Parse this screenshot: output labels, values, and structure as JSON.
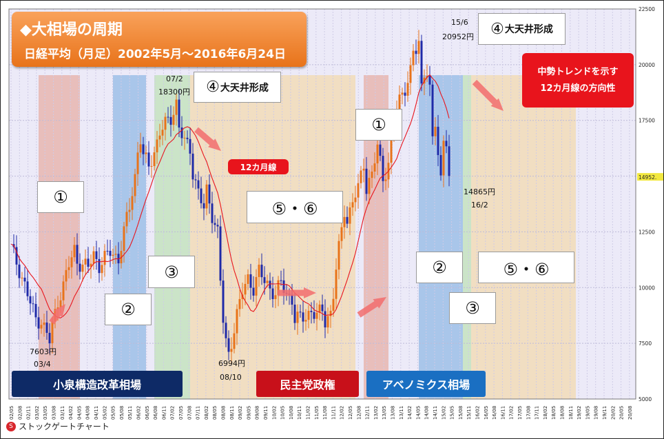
{
  "title": "◆大相場の周期",
  "subtitle": "日経平均（月足）2002年5月〜2016年6月24日",
  "chart_data": {
    "type": "candlestick",
    "ylim": [
      5000,
      22500
    ],
    "y_ticks": [
      5000,
      7500,
      10000,
      12500,
      15000,
      17500,
      20000,
      22500
    ],
    "current_price_label": "14952.",
    "x_ticks": [
      "02/05",
      "02/08",
      "02/11",
      "03/02",
      "03/05",
      "03/08",
      "03/11",
      "04/02",
      "04/05",
      "04/08",
      "04/11",
      "05/02",
      "05/05",
      "05/08",
      "05/11",
      "06/02",
      "06/05",
      "06/08",
      "06/11",
      "07/02",
      "07/05",
      "07/08",
      "07/11",
      "08/02",
      "08/05",
      "08/08",
      "08/11",
      "09/02",
      "09/05",
      "09/08",
      "09/11",
      "10/02",
      "10/05",
      "10/08",
      "10/11",
      "11/02",
      "11/05",
      "11/08",
      "11/11",
      "12/02",
      "12/05",
      "12/08",
      "12/11",
      "13/02",
      "13/05",
      "13/08",
      "13/11",
      "14/02",
      "14/05",
      "14/08",
      "14/11",
      "15/02",
      "15/05",
      "15/08",
      "15/11",
      "16/02",
      "16/05",
      "16/08",
      "16/11",
      "17/02",
      "17/05",
      "17/08",
      "17/11",
      "18/02",
      "18/05",
      "18/08",
      "18/11",
      "19/02",
      "19/05",
      "19/08",
      "19/11",
      "20/02",
      "20/05",
      "20/08"
    ],
    "price_path": [
      [
        0,
        11800
      ],
      [
        3,
        10800
      ],
      [
        5,
        10100
      ],
      [
        7,
        9300
      ],
      [
        9,
        8600
      ],
      [
        11,
        8500
      ],
      [
        13,
        7900
      ],
      [
        14,
        7603
      ],
      [
        15,
        8300
      ],
      [
        17,
        9400
      ],
      [
        19,
        10100
      ],
      [
        21,
        11000
      ],
      [
        23,
        11700
      ],
      [
        24,
        11200
      ],
      [
        26,
        11000
      ],
      [
        28,
        10900
      ],
      [
        30,
        11500
      ],
      [
        32,
        11000
      ],
      [
        34,
        11300
      ],
      [
        36,
        11600
      ],
      [
        38,
        11400
      ],
      [
        39,
        11300
      ],
      [
        41,
        12500
      ],
      [
        43,
        13600
      ],
      [
        45,
        15000
      ],
      [
        46,
        16100
      ],
      [
        47,
        16700
      ],
      [
        48,
        15900
      ],
      [
        50,
        15400
      ],
      [
        52,
        16100
      ],
      [
        54,
        17000
      ],
      [
        56,
        17300
      ],
      [
        58,
        17600
      ],
      [
        60,
        18300
      ],
      [
        61,
        17200
      ],
      [
        63,
        16500
      ],
      [
        65,
        16200
      ],
      [
        66,
        15200
      ],
      [
        68,
        14300
      ],
      [
        70,
        13500
      ],
      [
        71,
        14300
      ],
      [
        73,
        13300
      ],
      [
        75,
        12500
      ],
      [
        76,
        10300
      ],
      [
        77,
        8500
      ],
      [
        78,
        7500
      ],
      [
        79,
        6994
      ],
      [
        80,
        7600
      ],
      [
        82,
        8800
      ],
      [
        84,
        9800
      ],
      [
        86,
        10400
      ],
      [
        88,
        10000
      ],
      [
        90,
        10700
      ],
      [
        92,
        10300
      ],
      [
        94,
        10000
      ],
      [
        96,
        9700
      ],
      [
        98,
        10200
      ],
      [
        100,
        9700
      ],
      [
        102,
        9500
      ],
      [
        103,
        8600
      ],
      [
        105,
        8600
      ],
      [
        107,
        8700
      ],
      [
        109,
        9000
      ],
      [
        111,
        8700
      ],
      [
        113,
        9000
      ],
      [
        114,
        8500
      ],
      [
        116,
        8900
      ],
      [
        117,
        9700
      ],
      [
        118,
        10800
      ],
      [
        119,
        11700
      ],
      [
        121,
        13500
      ],
      [
        122,
        13000
      ],
      [
        124,
        13900
      ],
      [
        126,
        14400
      ],
      [
        128,
        15600
      ],
      [
        129,
        14500
      ],
      [
        131,
        15100
      ],
      [
        133,
        16300
      ],
      [
        135,
        14900
      ],
      [
        137,
        15600
      ],
      [
        139,
        17400
      ],
      [
        141,
        18400
      ],
      [
        143,
        19000
      ],
      [
        145,
        19700
      ],
      [
        146,
        20500
      ],
      [
        147,
        20600
      ],
      [
        148,
        20952
      ],
      [
        149,
        19000
      ],
      [
        150,
        19700
      ],
      [
        151,
        19800
      ],
      [
        152,
        18900
      ],
      [
        153,
        16500
      ],
      [
        154,
        17300
      ],
      [
        155,
        16000
      ],
      [
        156,
        14865
      ],
      [
        157,
        16700
      ],
      [
        158,
        16700
      ],
      [
        159,
        14952
      ]
    ],
    "ma_label": "12カ月線",
    "annotations": {
      "low_2003": {
        "value": "7603円",
        "date": "03/4"
      },
      "high_2007": {
        "date": "07/2",
        "value": "18300円"
      },
      "low_2008": {
        "value": "6994円",
        "date": "08/10"
      },
      "high_2015": {
        "date": "15/6",
        "value": "20952円"
      },
      "low_2016": {
        "value": "14865円",
        "date": "16/2"
      }
    }
  },
  "phase_labels": {
    "p1": "①",
    "p2": "②",
    "p3": "③",
    "p4_num": "④",
    "p4_text": "大天井形成",
    "p56": "⑤・⑥"
  },
  "callout": {
    "line1": "中勢トレンドを示す",
    "line2": "12カ月線の方向性"
  },
  "eras": {
    "koizumi": "小泉構造改革相場",
    "minshu": "民主党政権",
    "abenomics": "アベノミクス相場"
  },
  "colors": {
    "navy": "#0e2a66",
    "red": "#c8101a",
    "blue": "#1a6fc2",
    "orange": "#e8731a",
    "up": "#e8731a",
    "down": "#1f2aa8"
  },
  "footer": {
    "logo_text": "ストックゲートチャート",
    "logo_mark": "S"
  }
}
